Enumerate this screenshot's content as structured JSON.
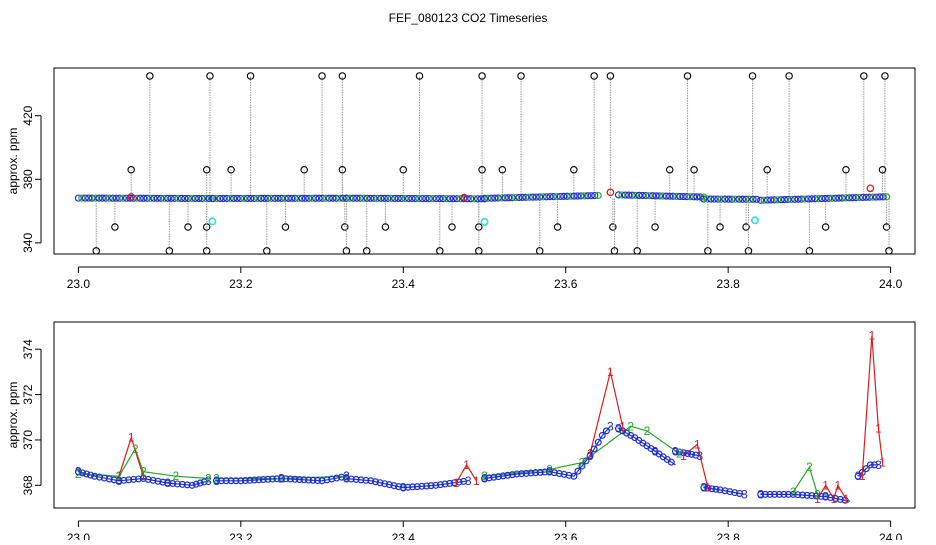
{
  "title": "FEF_080123  CO2 Timeseries",
  "chart_data": [
    {
      "type": "scatter",
      "ylabel": "approx. ppm",
      "xlim": [
        22.97,
        24.03
      ],
      "ylim": [
        333,
        450
      ],
      "x_ticks": [
        "23.0",
        "23.2",
        "23.4",
        "23.6",
        "23.8",
        "24.0"
      ],
      "x_tick_values": [
        23.0,
        23.2,
        23.4,
        23.6,
        23.8,
        24.0
      ],
      "y_ticks": [
        "340",
        "380",
        "420"
      ],
      "y_tick_values": [
        340,
        380,
        420
      ],
      "colors": {
        "series_1": "#e41a1c",
        "series_2": "#22aa22",
        "series_3": "#1f2fcf",
        "outlier": "#000000",
        "flag": "#33dddd",
        "drop_line": "#999999"
      },
      "baseline_segments": [
        {
          "x": [
            23.0,
            23.165
          ],
          "y": [
            368.2,
            367.9
          ]
        },
        {
          "x": [
            23.166,
            23.33
          ],
          "y": [
            367.9,
            368.1
          ]
        },
        {
          "x": [
            23.33,
            23.5
          ],
          "y": [
            368.1,
            367.7
          ]
        },
        {
          "x": [
            23.5,
            23.64
          ],
          "y": [
            368.0,
            369.8
          ]
        },
        {
          "x": [
            23.665,
            23.77
          ],
          "y": [
            370.2,
            368.8
          ]
        },
        {
          "x": [
            23.77,
            23.835
          ],
          "y": [
            367.6,
            367.4
          ]
        },
        {
          "x": [
            23.84,
            23.995
          ],
          "y": [
            366.8,
            369.0
          ]
        }
      ],
      "red_points": [
        [
          23.065,
          368.9
        ],
        [
          23.475,
          368.5
        ],
        [
          23.655,
          371.8
        ],
        [
          23.975,
          374.3
        ]
      ],
      "cyan_points": [
        [
          23.165,
          353.5
        ],
        [
          23.5,
          353.2
        ],
        [
          23.833,
          354.2
        ]
      ],
      "outliers_high": [
        23.088,
        23.162,
        23.212,
        23.3,
        23.325,
        23.42,
        23.497,
        23.545,
        23.635,
        23.655,
        23.75,
        23.83,
        23.875,
        23.967,
        23.993
      ],
      "outliers_mid_high": [
        23.065,
        23.158,
        23.188,
        23.278,
        23.325,
        23.4,
        23.497,
        23.522,
        23.61,
        23.728,
        23.758,
        23.848,
        23.945,
        23.99
      ],
      "outliers_mid_low": [
        23.045,
        23.135,
        23.158,
        23.255,
        23.328,
        23.378,
        23.46,
        23.493,
        23.59,
        23.658,
        23.71,
        23.79,
        23.822,
        23.92,
        23.995
      ],
      "outliers_low": [
        23.022,
        23.112,
        23.158,
        23.232,
        23.33,
        23.355,
        23.445,
        23.493,
        23.568,
        23.66,
        23.688,
        23.775,
        23.825,
        23.9,
        23.998
      ]
    },
    {
      "type": "line",
      "ylabel": "approx. ppm",
      "xlim": [
        22.97,
        24.03
      ],
      "ylim": [
        367.0,
        375.2
      ],
      "x_ticks": [
        "23.0",
        "23.2",
        "23.4",
        "23.6",
        "23.8",
        "24.0"
      ],
      "x_tick_values": [
        23.0,
        23.2,
        23.4,
        23.6,
        23.8,
        24.0
      ],
      "y_ticks": [
        "368",
        "370",
        "372",
        "374"
      ],
      "y_tick_values": [
        368,
        370,
        372,
        374
      ],
      "series": [
        {
          "label": "3",
          "color": "#1f2fcf",
          "segments": [
            {
              "x": [
                23.0,
                23.02,
                23.05,
                23.08,
                23.11,
                23.14,
                23.16
              ],
              "y": [
                368.6,
                368.4,
                368.2,
                368.3,
                368.1,
                368.0,
                368.2
              ]
            },
            {
              "x": [
                23.17,
                23.2,
                23.25,
                23.3,
                23.33
              ],
              "y": [
                368.2,
                368.2,
                368.3,
                368.2,
                368.4
              ]
            },
            {
              "x": [
                23.33,
                23.36,
                23.4,
                23.44,
                23.48
              ],
              "y": [
                368.3,
                368.2,
                367.9,
                368.0,
                368.2
              ]
            },
            {
              "x": [
                23.5,
                23.54,
                23.58,
                23.61,
                23.63,
                23.645,
                23.655
              ],
              "y": [
                368.3,
                368.5,
                368.6,
                368.4,
                369.3,
                370.2,
                370.6
              ]
            },
            {
              "x": [
                23.665,
                23.685,
                23.71,
                23.735
              ],
              "y": [
                370.5,
                370.1,
                369.5,
                368.9
              ]
            },
            {
              "x": [
                23.735,
                23.75,
                23.765
              ],
              "y": [
                369.5,
                369.4,
                369.3
              ]
            },
            {
              "x": [
                23.77,
                23.79,
                23.82
              ],
              "y": [
                367.9,
                367.8,
                367.6
              ]
            },
            {
              "x": [
                23.84,
                23.88,
                23.92,
                23.95
              ],
              "y": [
                367.6,
                367.6,
                367.5,
                367.3
              ]
            },
            {
              "x": [
                23.96,
                23.975,
                23.985
              ],
              "y": [
                368.4,
                368.9,
                368.9
              ]
            }
          ]
        },
        {
          "label": "2",
          "color": "#22aa22",
          "segments": [
            {
              "x": [
                23.0,
                23.05,
                23.07,
                23.08,
                23.12,
                23.16
              ],
              "y": [
                368.5,
                368.4,
                369.6,
                368.6,
                368.4,
                368.3
              ]
            },
            {
              "x": [
                23.17,
                23.25,
                23.33
              ],
              "y": [
                368.3,
                368.3,
                368.4
              ]
            },
            {
              "x": [
                23.5,
                23.58,
                23.62,
                23.68,
                23.7,
                23.74
              ],
              "y": [
                368.4,
                368.7,
                369.0,
                370.6,
                370.4,
                369.4
              ]
            },
            {
              "x": [
                23.88,
                23.9,
                23.91
              ],
              "y": [
                367.7,
                368.8,
                367.6
              ]
            }
          ]
        },
        {
          "label": "1",
          "color": "#e41a1c",
          "segments": [
            {
              "x": [
                23.05,
                23.065,
                23.08
              ],
              "y": [
                368.4,
                370.1,
                368.4
              ]
            },
            {
              "x": [
                23.465,
                23.478,
                23.49
              ],
              "y": [
                368.1,
                368.9,
                368.2
              ]
            },
            {
              "x": [
                23.63,
                23.655,
                23.67
              ],
              "y": [
                369.4,
                373.0,
                370.6
              ]
            },
            {
              "x": [
                23.745,
                23.762,
                23.775
              ],
              "y": [
                369.3,
                369.8,
                367.9
              ]
            },
            {
              "x": [
                23.91,
                23.92,
                23.93,
                23.935,
                23.945
              ],
              "y": [
                367.4,
                368.0,
                367.4,
                368.0,
                367.4
              ]
            },
            {
              "x": [
                23.965,
                23.977,
                23.985,
                23.99
              ],
              "y": [
                368.4,
                374.6,
                370.5,
                369.0
              ]
            }
          ]
        }
      ]
    }
  ]
}
